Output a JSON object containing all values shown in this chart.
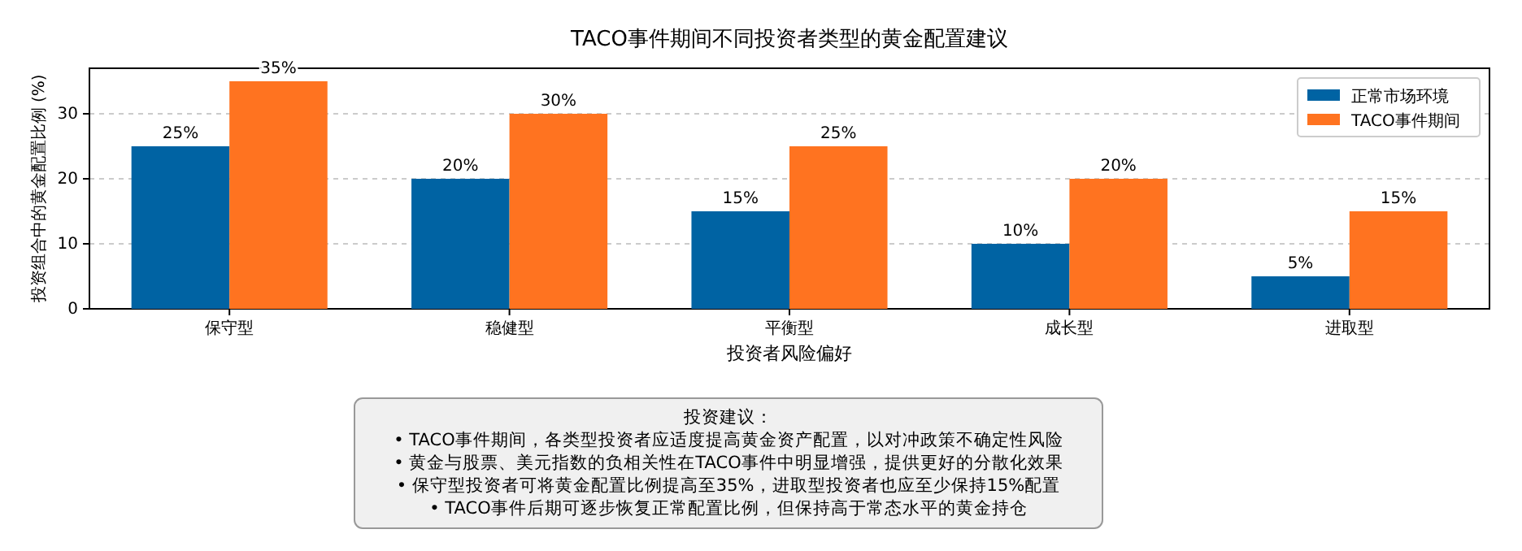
{
  "chart_data": {
    "type": "bar",
    "title": "TACO事件期间不同投资者类型的黄金配置建议",
    "xlabel": "投资者风险偏好",
    "ylabel": "投资组合中的黄金配置比例 (%)",
    "categories": [
      "保守型",
      "稳健型",
      "平衡型",
      "成长型",
      "进取型"
    ],
    "series": [
      {
        "name": "正常市场环境",
        "color": "#0063a3",
        "values": [
          25,
          20,
          15,
          10,
          5
        ],
        "value_labels": [
          "25%",
          "20%",
          "15%",
          "10%",
          "5%"
        ]
      },
      {
        "name": "TACO事件期间",
        "color": "#ff7320",
        "values": [
          35,
          30,
          25,
          20,
          15
        ],
        "value_labels": [
          "35%",
          "30%",
          "25%",
          "20%",
          "15%"
        ]
      }
    ],
    "ylim": [
      0,
      37
    ],
    "yticks": [
      0,
      10,
      20,
      30
    ],
    "grid": "y",
    "legend": "top right",
    "annotations": [
      "投资建议：\n• TACO事件期间，各类型投资者应适度提高黄金资产配置，以对冲政策不确定性风险\n• 黄金与股票、美元指数的负相关性在TACO事件中明显增强，提供更好的分散化效果\n• 保守型投资者可将黄金配置比例提高至35%，进取型投资者也应至少保持15%配置\n• TACO事件后期可逐步恢复正常配置比例，但保持高于常态水平的黄金持仓"
    ]
  }
}
